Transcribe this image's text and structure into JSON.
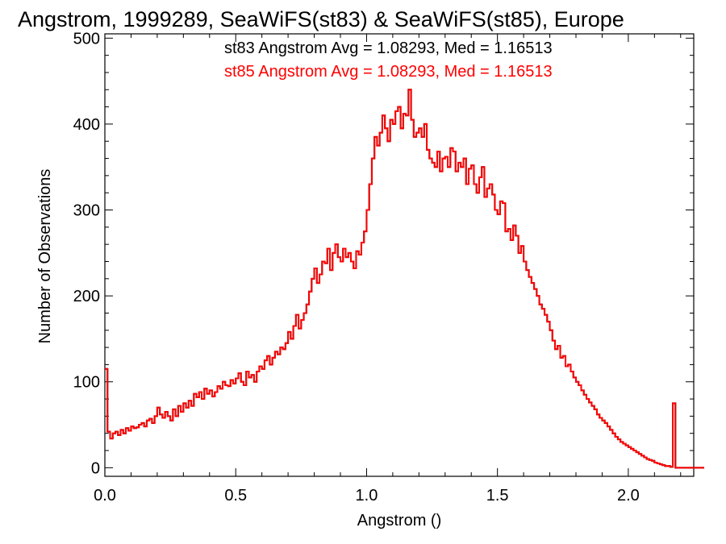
{
  "chart_data": {
    "type": "histogram",
    "title": "Angstrom, 1999289, SeaWiFS(st83) & SeaWiFS(st85), Europe",
    "xlabel": "Angstrom ()",
    "ylabel": "Number of Observations",
    "xlim": [
      0.0,
      2.25
    ],
    "ylim": [
      -10,
      505
    ],
    "xticks": [
      "0.0",
      "0.5",
      "1.0",
      "1.5",
      "2.0"
    ],
    "yticks": [
      "0",
      "100",
      "200",
      "300",
      "400",
      "500"
    ],
    "grid": false,
    "bin_width": 0.01,
    "series": [
      {
        "name": "st83",
        "color": "#000000"
      },
      {
        "name": "st85",
        "color": "#ff0000"
      }
    ],
    "annotations": [
      {
        "text": "st83 Angstrom Avg = 1.08293, Med = 1.16513",
        "color": "#000000"
      },
      {
        "text": "st85 Angstrom Avg = 1.08293, Med = 1.16513",
        "color": "#ff0000"
      }
    ],
    "bin_start": 0.0,
    "counts": [
      115,
      42,
      34,
      40,
      42,
      38,
      44,
      40,
      46,
      43,
      48,
      46,
      47,
      50,
      52,
      48,
      55,
      57,
      52,
      60,
      70,
      62,
      58,
      65,
      60,
      55,
      68,
      60,
      72,
      65,
      75,
      70,
      78,
      72,
      86,
      82,
      88,
      80,
      92,
      86,
      90,
      83,
      88,
      95,
      92,
      100,
      96,
      95,
      102,
      98,
      104,
      110,
      100,
      96,
      112,
      105,
      108,
      100,
      112,
      118,
      115,
      125,
      130,
      120,
      128,
      135,
      132,
      140,
      138,
      145,
      158,
      150,
      165,
      178,
      162,
      172,
      180,
      190,
      205,
      220,
      232,
      215,
      225,
      240,
      238,
      255,
      230,
      250,
      260,
      245,
      240,
      255,
      245,
      250,
      240,
      232,
      252,
      248,
      262,
      275,
      300,
      330,
      360,
      385,
      375,
      390,
      410,
      395,
      380,
      405,
      400,
      415,
      420,
      395,
      412,
      410,
      440,
      405,
      385,
      390,
      395,
      385,
      400,
      370,
      360,
      355,
      350,
      368,
      345,
      360,
      362,
      350,
      372,
      368,
      345,
      355,
      350,
      360,
      330,
      348,
      352,
      330,
      320,
      338,
      350,
      315,
      325,
      330,
      318,
      300,
      295,
      310,
      308,
      275,
      278,
      265,
      282,
      270,
      250,
      258,
      240,
      230,
      222,
      215,
      208,
      200,
      190,
      185,
      178,
      170,
      160,
      148,
      138,
      142,
      128,
      130,
      118,
      120,
      112,
      105,
      100,
      96,
      90,
      85,
      80,
      76,
      72,
      68,
      62,
      58,
      55,
      52,
      48,
      44,
      40,
      36,
      33,
      30,
      28,
      26,
      24,
      22,
      20,
      18,
      16,
      14,
      12,
      10,
      9,
      8,
      6,
      5,
      4,
      3,
      2,
      2,
      1,
      75,
      0,
      0,
      0,
      0,
      0,
      0,
      0,
      0,
      0,
      0,
      0
    ]
  }
}
